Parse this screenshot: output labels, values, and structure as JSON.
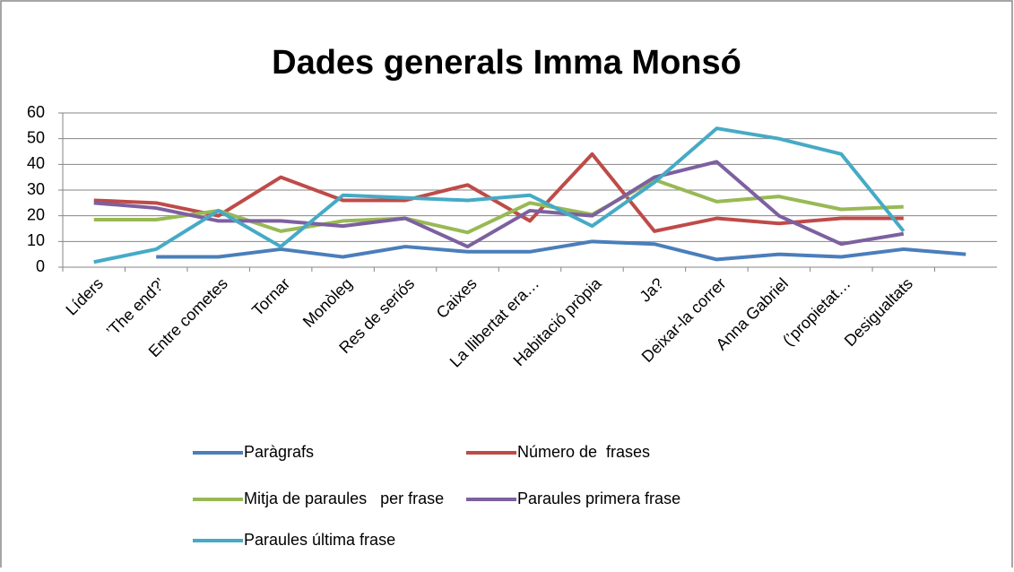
{
  "chart_data": {
    "type": "line",
    "title": "Dades generals Imma Monsó",
    "categories": [
      "Líders",
      "’The end?’",
      "Entre cometes",
      "Tornar",
      "Monòleg",
      "Res de seriós",
      "Caixes",
      "La llibertat era…",
      "Habitació pròpia",
      "Ja?",
      "Deixar-la correr",
      "Anna Gabriel",
      "(’propietat…",
      "Desigualtats",
      null
    ],
    "series": [
      {
        "name": "Paràgrafs",
        "color": "#4a7ebb",
        "values": [
          null,
          4,
          4,
          7,
          4,
          8,
          6,
          6,
          10,
          9,
          3,
          5,
          4,
          7,
          5
        ]
      },
      {
        "name": "Número de  frases",
        "color": "#be4b48",
        "values": [
          26,
          25,
          20,
          35,
          26,
          26,
          32,
          18,
          44,
          14,
          19,
          17,
          19,
          19,
          null
        ]
      },
      {
        "name": "Mitja de paraules   per frase",
        "color": "#98b954",
        "values": [
          18.5,
          18.5,
          22,
          14,
          18,
          19,
          13.5,
          25,
          20.5,
          34,
          25.5,
          27.5,
          22.5,
          23.5,
          null
        ]
      },
      {
        "name": "Paraules primera frase",
        "color": "#7d60a0",
        "values": [
          25,
          23,
          18,
          18,
          16,
          19,
          8,
          22,
          20,
          35,
          41,
          20,
          9,
          13,
          null
        ]
      },
      {
        "name": "Paraules última frase",
        "color": "#46aac5",
        "values": [
          2,
          7,
          22,
          8,
          28,
          27,
          26,
          28,
          16,
          33,
          54,
          50,
          44,
          14,
          null
        ]
      }
    ],
    "ylim": [
      0,
      60
    ],
    "yticks": [
      0,
      10,
      20,
      30,
      40,
      50,
      60
    ],
    "grid": true,
    "legend": "bottom"
  }
}
